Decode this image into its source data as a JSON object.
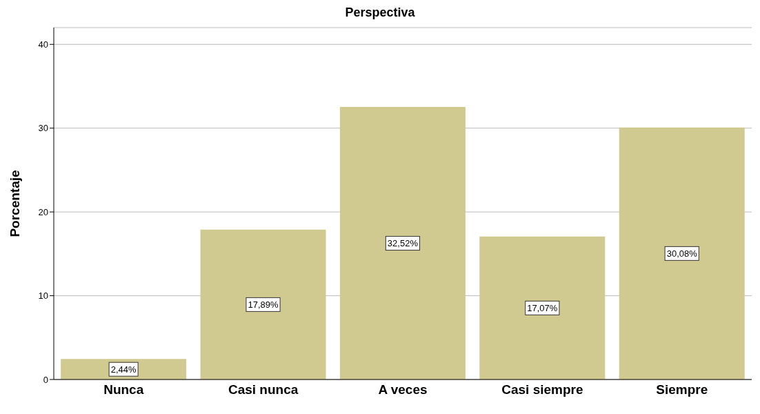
{
  "chart_data": {
    "type": "bar",
    "title": "Perspectiva",
    "ylabel": "Porcentaje",
    "categories": [
      "Nunca",
      "Casi nunca",
      "A veces",
      "Casi siempre",
      "Siempre"
    ],
    "values": [
      2.44,
      17.89,
      32.52,
      17.07,
      30.08
    ],
    "value_labels": [
      "2,44%",
      "17,89%",
      "32,52%",
      "17,07%",
      "30,08%"
    ],
    "color": "#d0c990",
    "ylim": [
      0,
      42
    ],
    "yticks": [
      0,
      10,
      20,
      30,
      40
    ],
    "grid": "y"
  }
}
